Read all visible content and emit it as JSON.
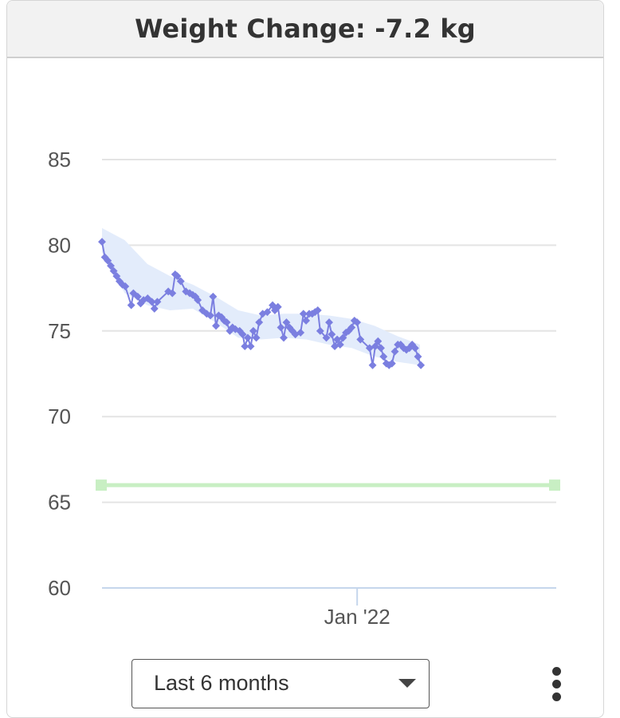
{
  "header": {
    "title": "Weight Change: -7.2 kg"
  },
  "controls": {
    "range_label": "Last 6 months",
    "range_icon": "chevron-down-icon",
    "more_icon": "more-vertical-icon"
  },
  "colors": {
    "line": "#7b7fe0",
    "band": "#e3ecfb",
    "goal": "#c8efc3",
    "grid": "#e4e4e4",
    "axis": "#c5d6ec",
    "tick_text": "#555555"
  },
  "chart_data": {
    "type": "line",
    "title": "Weight Change: -7.2 kg",
    "xlabel": "",
    "ylabel": "",
    "ylim": [
      60,
      85
    ],
    "yticks": [
      85,
      80,
      75,
      70,
      65,
      60
    ],
    "x_tick_labels": [
      {
        "label": "Jan '22",
        "x": 0.5617
      }
    ],
    "grid": true,
    "series": [
      {
        "values": [
          [
            0.0,
            80.2
          ],
          [
            0.0064,
            79.3
          ],
          [
            0.0128,
            79.1
          ],
          [
            0.0193,
            78.8
          ],
          [
            0.0257,
            78.5
          ],
          [
            0.0321,
            78.2
          ],
          [
            0.0385,
            77.9
          ],
          [
            0.0449,
            77.7
          ],
          [
            0.0513,
            77.6
          ],
          [
            0.0643,
            76.5
          ],
          [
            0.0692,
            77.2
          ],
          [
            0.0787,
            77.0
          ],
          [
            0.0851,
            76.6
          ],
          [
            0.0915,
            76.8
          ],
          [
            0.1005,
            76.9
          ],
          [
            0.1099,
            76.7
          ],
          [
            0.1154,
            76.3
          ],
          [
            0.1218,
            76.7
          ],
          [
            0.1459,
            77.3
          ],
          [
            0.1549,
            77.2
          ],
          [
            0.1611,
            78.3
          ],
          [
            0.1657,
            78.2
          ],
          [
            0.1733,
            77.9
          ],
          [
            0.1847,
            77.3
          ],
          [
            0.1931,
            77.2
          ],
          [
            0.1998,
            77.1
          ],
          [
            0.2058,
            77.0
          ],
          [
            0.2108,
            76.8
          ],
          [
            0.2212,
            76.2
          ],
          [
            0.2305,
            76.0
          ],
          [
            0.2386,
            75.9
          ],
          [
            0.2445,
            77.0
          ],
          [
            0.2509,
            75.3
          ],
          [
            0.2568,
            75.9
          ],
          [
            0.2632,
            75.8
          ],
          [
            0.2691,
            75.6
          ],
          [
            0.2745,
            75.5
          ],
          [
            0.2814,
            75.0
          ],
          [
            0.2873,
            75.2
          ],
          [
            0.2935,
            75.1
          ],
          [
            0.303,
            75.0
          ],
          [
            0.3096,
            74.8
          ],
          [
            0.3145,
            74.1
          ],
          [
            0.3209,
            74.6
          ],
          [
            0.3273,
            74.1
          ],
          [
            0.3331,
            75.0
          ],
          [
            0.3396,
            74.6
          ],
          [
            0.3459,
            75.5
          ],
          [
            0.3538,
            76.0
          ],
          [
            0.3639,
            76.1
          ],
          [
            0.3755,
            76.5
          ],
          [
            0.3806,
            76.2
          ],
          [
            0.3873,
            76.4
          ],
          [
            0.3938,
            75.2
          ],
          [
            0.4,
            74.6
          ],
          [
            0.406,
            75.5
          ],
          [
            0.4127,
            75.2
          ],
          [
            0.4192,
            75.0
          ],
          [
            0.4257,
            74.8
          ],
          [
            0.4372,
            74.9
          ],
          [
            0.4435,
            76.0
          ],
          [
            0.4493,
            75.6
          ],
          [
            0.4562,
            76.0
          ],
          [
            0.4628,
            76.0
          ],
          [
            0.4689,
            76.1
          ],
          [
            0.475,
            76.2
          ],
          [
            0.4804,
            75.0
          ],
          [
            0.4939,
            74.6
          ],
          [
            0.5,
            75.5
          ],
          [
            0.5058,
            74.8
          ],
          [
            0.5124,
            74.1
          ],
          [
            0.5178,
            74.5
          ],
          [
            0.5242,
            74.2
          ],
          [
            0.5306,
            74.6
          ],
          [
            0.5371,
            74.9
          ],
          [
            0.543,
            75.0
          ],
          [
            0.5495,
            75.2
          ],
          [
            0.5558,
            75.6
          ],
          [
            0.5615,
            75.5
          ],
          [
            0.5689,
            74.5
          ],
          [
            0.5891,
            74.0
          ],
          [
            0.5957,
            73.0
          ],
          [
            0.6015,
            74.1
          ],
          [
            0.6076,
            74.4
          ],
          [
            0.614,
            74.0
          ],
          [
            0.6198,
            73.5
          ],
          [
            0.626,
            73.1
          ],
          [
            0.6319,
            73.0
          ],
          [
            0.6383,
            73.1
          ],
          [
            0.6448,
            73.8
          ],
          [
            0.6512,
            74.2
          ],
          [
            0.6575,
            74.2
          ],
          [
            0.664,
            74.0
          ],
          [
            0.6702,
            73.9
          ],
          [
            0.6766,
            74.0
          ],
          [
            0.6828,
            74.2
          ],
          [
            0.6892,
            74.0
          ],
          [
            0.6956,
            73.5
          ],
          [
            0.7019,
            73.0
          ]
        ]
      }
    ],
    "band": {
      "upper": [
        [
          0.0,
          81.0
        ],
        [
          0.05,
          80.3
        ],
        [
          0.1,
          78.9
        ],
        [
          0.15,
          78.2
        ],
        [
          0.2,
          77.7
        ],
        [
          0.25,
          77.0
        ],
        [
          0.3,
          76.2
        ],
        [
          0.35,
          75.9
        ],
        [
          0.4,
          76.0
        ],
        [
          0.45,
          76.0
        ],
        [
          0.5,
          75.9
        ],
        [
          0.55,
          75.7
        ],
        [
          0.6,
          75.3
        ],
        [
          0.65,
          74.7
        ],
        [
          0.7,
          74.2
        ]
      ],
      "lower": [
        [
          0.0,
          79.6
        ],
        [
          0.05,
          77.2
        ],
        [
          0.1,
          76.5
        ],
        [
          0.15,
          76.2
        ],
        [
          0.2,
          76.3
        ],
        [
          0.25,
          75.5
        ],
        [
          0.3,
          74.6
        ],
        [
          0.35,
          74.5
        ],
        [
          0.4,
          74.6
        ],
        [
          0.45,
          74.5
        ],
        [
          0.5,
          74.2
        ],
        [
          0.55,
          74.0
        ],
        [
          0.6,
          73.5
        ],
        [
          0.65,
          73.2
        ],
        [
          0.7,
          73.0
        ]
      ]
    },
    "goal": {
      "value": 66.0
    }
  }
}
